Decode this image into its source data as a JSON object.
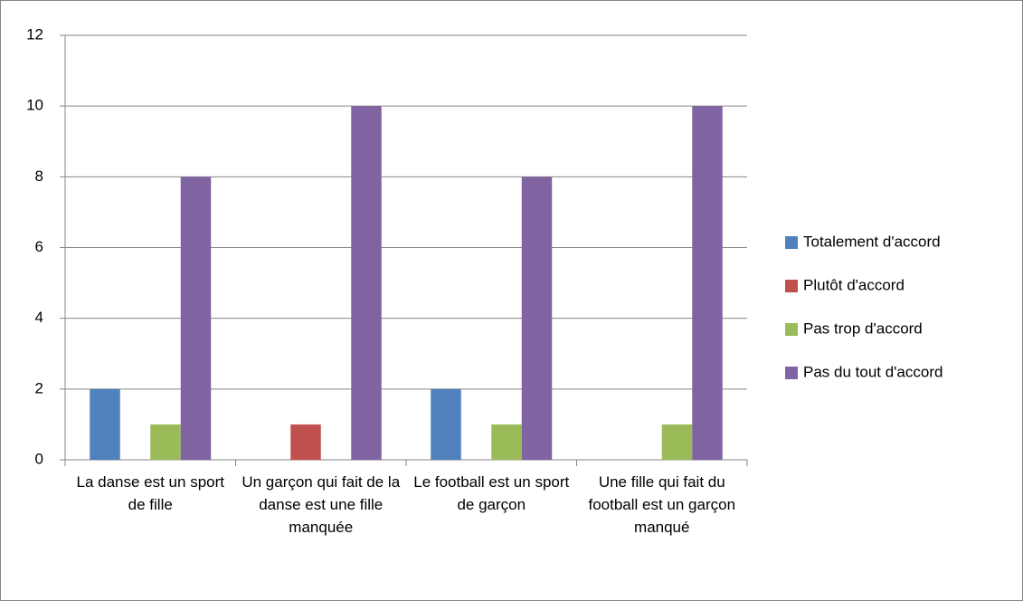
{
  "chart_data": {
    "type": "bar",
    "categories": [
      "La danse est un sport de fille",
      "Un garçon qui fait de la danse est une fille manquée",
      "Le football est un sport de garçon",
      "Une fille qui fait du football est un garçon manqué"
    ],
    "series": [
      {
        "name": "Totalement d'accord",
        "color": "#4f81bd",
        "values": [
          2,
          0,
          2,
          0
        ]
      },
      {
        "name": "Plutôt d'accord",
        "color": "#c0504d",
        "values": [
          0,
          1,
          0,
          0
        ]
      },
      {
        "name": "Pas trop d'accord",
        "color": "#9bbb59",
        "values": [
          1,
          0,
          1,
          1
        ]
      },
      {
        "name": "Pas du tout d'accord",
        "color": "#8064a2",
        "values": [
          8,
          10,
          8,
          10
        ]
      }
    ],
    "ylim": [
      0,
      12
    ],
    "yticks": [
      0,
      2,
      4,
      6,
      8,
      10,
      12
    ],
    "grid": true,
    "legend": "right"
  }
}
